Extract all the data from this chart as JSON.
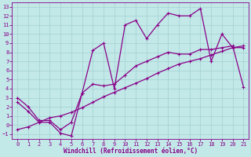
{
  "xlabel": "Windchill (Refroidissement éolien,°C)",
  "bg_color": "#c2e8e8",
  "grid_color": "#a8d4d4",
  "line_color": "#880088",
  "xlim": [
    -0.5,
    21.5
  ],
  "ylim": [
    -1.5,
    13.5
  ],
  "xticks": [
    0,
    1,
    2,
    3,
    4,
    5,
    6,
    7,
    8,
    9,
    10,
    11,
    12,
    13,
    14,
    15,
    16,
    17,
    18,
    19,
    20,
    21
  ],
  "yticks": [
    -1,
    0,
    1,
    2,
    3,
    4,
    5,
    6,
    7,
    8,
    9,
    10,
    11,
    12,
    13
  ],
  "series1_x": [
    0,
    1,
    2,
    3,
    4,
    5,
    6,
    7,
    8,
    9,
    10,
    11,
    12,
    13,
    14,
    15,
    16,
    17,
    18,
    19,
    20,
    21
  ],
  "series1_y": [
    2.5,
    1.5,
    0.3,
    0.3,
    -0.9,
    -1.2,
    3.5,
    8.2,
    9.0,
    4.0,
    11.0,
    11.5,
    9.5,
    11.0,
    12.3,
    12.0,
    12.0,
    12.8,
    7.0,
    10.0,
    8.5,
    8.5
  ],
  "series2_x": [
    0,
    1,
    2,
    3,
    4,
    5,
    6,
    7,
    8,
    9,
    10,
    11,
    12,
    13,
    14,
    15,
    16,
    17,
    18,
    19,
    20,
    21
  ],
  "series2_y": [
    3.0,
    2.0,
    0.5,
    0.5,
    -0.5,
    0.3,
    3.5,
    4.5,
    4.3,
    4.5,
    5.5,
    6.5,
    7.0,
    7.5,
    8.0,
    7.8,
    7.8,
    8.3,
    8.3,
    8.5,
    8.7,
    4.2
  ],
  "series3_x": [
    0,
    1,
    2,
    3,
    4,
    5,
    6,
    7,
    8,
    9,
    10,
    11,
    12,
    13,
    14,
    15,
    16,
    17,
    18,
    19,
    20,
    21
  ],
  "series3_y": [
    -0.5,
    -0.2,
    0.3,
    0.8,
    1.0,
    1.4,
    1.9,
    2.5,
    3.1,
    3.6,
    4.1,
    4.6,
    5.1,
    5.7,
    6.2,
    6.7,
    7.0,
    7.3,
    7.7,
    8.1,
    8.5,
    8.7
  ]
}
